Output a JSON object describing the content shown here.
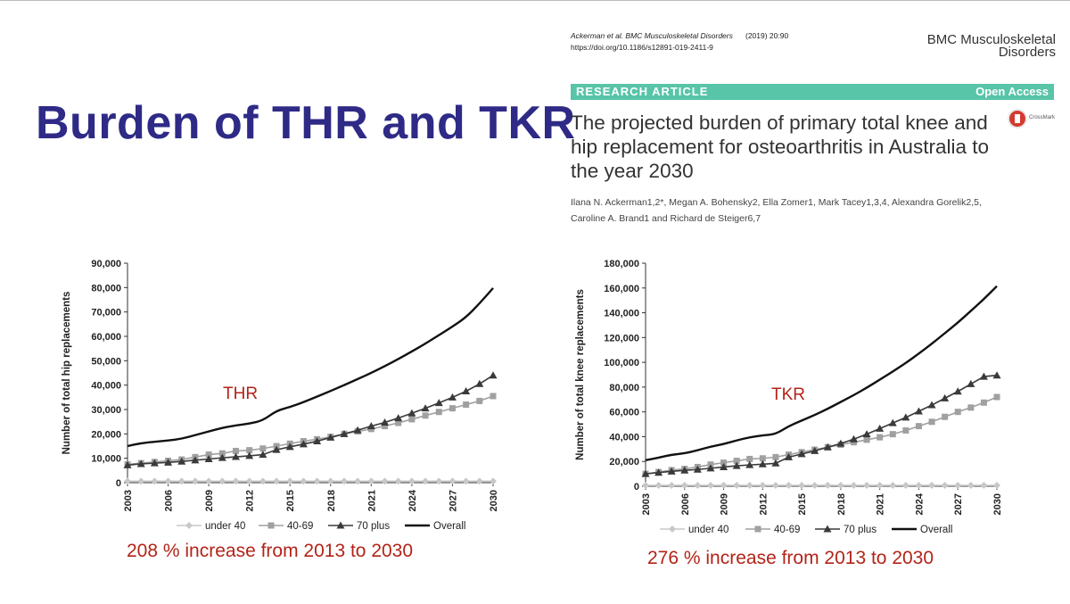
{
  "slide": {
    "title": "Burden of THR and TKR"
  },
  "paper": {
    "citation_authors": "Ackerman et al. BMC Musculoskeletal Disorders",
    "citation_year": "(2019) 20:90",
    "doi": "https://doi.org/10.1186/s12891-019-2411-9",
    "journal_line1": "BMC Musculoskeletal",
    "journal_line2": "Disorders",
    "article_type": "RESEARCH ARTICLE",
    "access": "Open Access",
    "title": "The projected burden of primary total knee and hip replacement for osteoarthritis in Australia to the year 2030",
    "crossmark_label": "CrossMark",
    "authors_line1": "Ilana N. Ackerman1,2*, Megan A. Bohensky2, Ella Zomer1, Mark Tacey1,3,4, Alexandra Gorelik2,5,",
    "authors_line2": "Caroline A. Brand1 and Richard de Steiger6,7"
  },
  "captions": {
    "thr": "208 % increase from 2013 to 2030",
    "tkr": "276 % increase from 2013 to 2030"
  },
  "colors": {
    "title": "#2e2a86",
    "caption": "#b22418",
    "bar": "#58c4a8",
    "under40": "#c8c8c8",
    "age40_69": "#a0a0a0",
    "plus70": "#3a3a3a",
    "overall": "#111111"
  },
  "chart_data": [
    {
      "type": "line",
      "id": "thr",
      "annotation": "THR",
      "ylabel": "Number of total hip replacements",
      "xlabel": "",
      "ylim": [
        0,
        90000
      ],
      "yticks": [
        0,
        10000,
        20000,
        30000,
        40000,
        50000,
        60000,
        70000,
        80000,
        90000
      ],
      "ytick_labels": [
        "0",
        "10,000",
        "20,000",
        "30,000",
        "40,000",
        "50,000",
        "60,000",
        "70,000",
        "80,000",
        "90,000"
      ],
      "x": [
        2003,
        2004,
        2005,
        2006,
        2007,
        2008,
        2009,
        2010,
        2011,
        2012,
        2013,
        2014,
        2015,
        2016,
        2017,
        2018,
        2019,
        2020,
        2021,
        2022,
        2023,
        2024,
        2025,
        2026,
        2027,
        2028,
        2029,
        2030
      ],
      "xticks": [
        2003,
        2006,
        2009,
        2012,
        2015,
        2018,
        2021,
        2024,
        2027,
        2030
      ],
      "xtick_labels": [
        "2003",
        "2006",
        "2009",
        "2012",
        "2015",
        "2018",
        "2021",
        "2024",
        "2027",
        "2030"
      ],
      "series": [
        {
          "name": "under 40",
          "marker": "diamond",
          "values": [
            600,
            600,
            600,
            600,
            600,
            600,
            600,
            600,
            600,
            600,
            600,
            600,
            600,
            600,
            600,
            600,
            600,
            600,
            600,
            600,
            600,
            600,
            600,
            600,
            600,
            600,
            600,
            600
          ]
        },
        {
          "name": "40-69",
          "marker": "square",
          "values": [
            7500,
            8000,
            8500,
            9000,
            9500,
            10500,
            11500,
            12000,
            13000,
            13300,
            14000,
            15000,
            16000,
            17000,
            17800,
            18800,
            20000,
            21000,
            22000,
            23200,
            24500,
            26000,
            27500,
            29000,
            30500,
            32000,
            33500,
            35500
          ]
        },
        {
          "name": "70 plus",
          "marker": "triangle",
          "values": [
            7200,
            7700,
            8000,
            8300,
            8700,
            9200,
            9700,
            10200,
            10600,
            11000,
            11500,
            13500,
            14700,
            15800,
            17000,
            18500,
            20000,
            21500,
            23200,
            24700,
            26500,
            28500,
            30500,
            32700,
            35000,
            37500,
            40500,
            44000
          ]
        },
        {
          "name": "Overall",
          "marker": "none",
          "values": [
            15000,
            16200,
            16800,
            17300,
            18000,
            19500,
            21000,
            22500,
            23500,
            24200,
            25500,
            29500,
            31000,
            33000,
            35300,
            37600,
            40000,
            42500,
            45000,
            47800,
            50700,
            53800,
            57000,
            60500,
            64000,
            67800,
            73500,
            79800
          ]
        }
      ]
    },
    {
      "type": "line",
      "id": "tkr",
      "annotation": "TKR",
      "ylabel": "Number of total knee replacements",
      "xlabel": "",
      "ylim": [
        0,
        180000
      ],
      "yticks": [
        0,
        20000,
        40000,
        60000,
        80000,
        100000,
        120000,
        140000,
        160000,
        180000
      ],
      "ytick_labels": [
        "0",
        "20,000",
        "40,000",
        "60,000",
        "80,000",
        "100,000",
        "120,000",
        "140,000",
        "160,000",
        "180,000"
      ],
      "x": [
        2003,
        2004,
        2005,
        2006,
        2007,
        2008,
        2009,
        2010,
        2011,
        2012,
        2013,
        2014,
        2015,
        2016,
        2017,
        2018,
        2019,
        2020,
        2021,
        2022,
        2023,
        2024,
        2025,
        2026,
        2027,
        2028,
        2029,
        2030
      ],
      "xticks": [
        2003,
        2006,
        2009,
        2012,
        2015,
        2018,
        2021,
        2024,
        2027,
        2030
      ],
      "xtick_labels": [
        "2003",
        "2006",
        "2009",
        "2012",
        "2015",
        "2018",
        "2021",
        "2024",
        "2027",
        "2030"
      ],
      "series": [
        {
          "name": "under 40",
          "marker": "diamond",
          "values": [
            700,
            700,
            700,
            700,
            700,
            700,
            700,
            700,
            700,
            700,
            700,
            700,
            700,
            700,
            700,
            700,
            700,
            700,
            700,
            700,
            700,
            700,
            700,
            700,
            700,
            700,
            700,
            700
          ]
        },
        {
          "name": "40-69",
          "marker": "square",
          "values": [
            10000,
            11500,
            13000,
            14000,
            15500,
            17500,
            19000,
            20500,
            22000,
            22500,
            23500,
            25500,
            27500,
            29500,
            31500,
            33500,
            35500,
            37500,
            39500,
            42000,
            45000,
            48500,
            52000,
            56000,
            60000,
            63500,
            67500,
            72000
          ]
        },
        {
          "name": "70 plus",
          "marker": "triangle",
          "values": [
            10000,
            11000,
            12000,
            12800,
            13500,
            14500,
            15500,
            16500,
            17200,
            17800,
            18500,
            23500,
            26000,
            28500,
            31500,
            34500,
            38000,
            42000,
            46500,
            51000,
            55500,
            60500,
            65500,
            71000,
            76500,
            82500,
            88500,
            89500
          ]
        },
        {
          "name": "Overall",
          "marker": "none",
          "values": [
            21000,
            23000,
            25500,
            26500,
            29000,
            32000,
            34000,
            37000,
            39500,
            41000,
            42000,
            48500,
            53000,
            57500,
            62500,
            68000,
            73500,
            79500,
            86000,
            92500,
            99500,
            107000,
            115000,
            123500,
            132000,
            141500,
            151000,
            161500
          ]
        }
      ]
    }
  ]
}
